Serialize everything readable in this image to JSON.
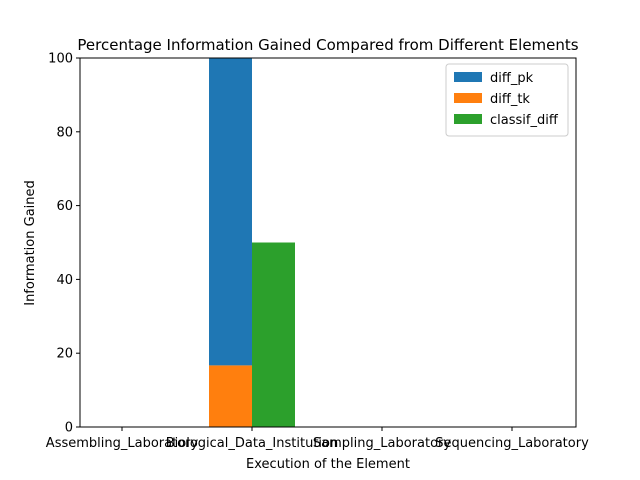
{
  "chart_data": {
    "type": "bar",
    "title": "Percentage Information Gained Compared from Different Elements",
    "xlabel": "Execution of the Element",
    "ylabel": "Information Gained",
    "categories": [
      "Assembling_Laboratory",
      "Biological_Data_Institution",
      "Sampling_Laboratory",
      "Sequencing_Laboratory"
    ],
    "ylim": [
      0,
      100
    ],
    "yticks": [
      0,
      20,
      40,
      60,
      80,
      100
    ],
    "series": [
      {
        "name": "diff_pk",
        "values": [
          0,
          83.3,
          0,
          0
        ],
        "color": "#1f77b4"
      },
      {
        "name": "diff_tk",
        "values": [
          0,
          16.7,
          0,
          0
        ],
        "color": "#ff7f0e"
      },
      {
        "name": "classif_diff",
        "values": [
          0,
          50,
          0,
          0
        ],
        "color": "#2ca02c"
      }
    ],
    "legend_position": "top-right",
    "grid": false
  }
}
